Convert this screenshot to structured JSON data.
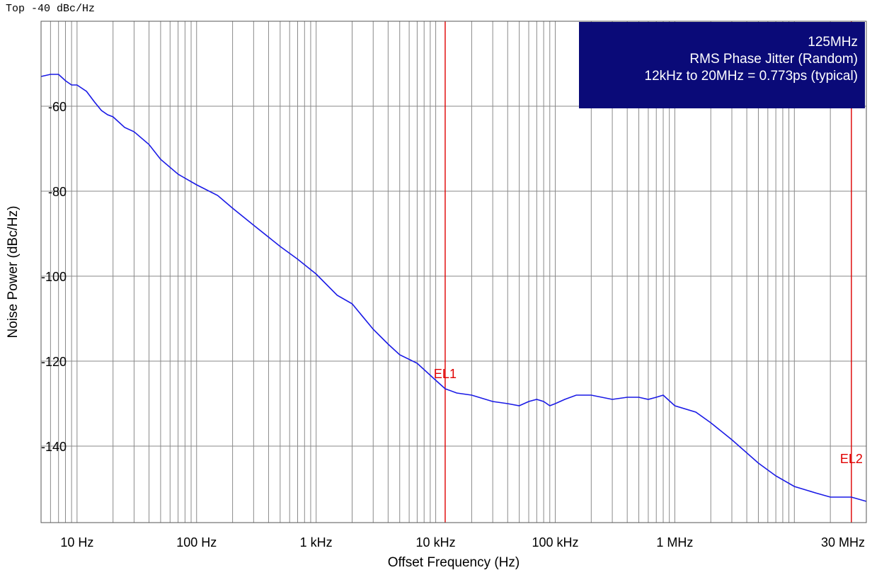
{
  "top_label": "Top -40 dBc/Hz",
  "info_box": {
    "lines": [
      "125MHz",
      "RMS Phase Jitter (Random)",
      "12kHz to 20MHz = 0.773ps (typical)"
    ],
    "background": "#0a0a78"
  },
  "colors": {
    "trace": "#1a1ae6",
    "marker": "#e00000",
    "grid": "#8a8a8a",
    "frame": "#555555"
  },
  "chart_data": {
    "type": "line",
    "title": "",
    "xlabel": "Offset Frequency (Hz)",
    "ylabel": "Noise Power (dBc/Hz)",
    "x_scale": "log",
    "xlim": [
      5,
      40000000
    ],
    "ylim": [
      -158,
      -40
    ],
    "grid": true,
    "y_ticks": [
      -60,
      -80,
      -100,
      -120,
      -140
    ],
    "x_ticks": [
      {
        "value": 10,
        "label": "10 Hz"
      },
      {
        "value": 100,
        "label": "100 Hz"
      },
      {
        "value": 1000,
        "label": "1 kHz"
      },
      {
        "value": 10000,
        "label": "10 kHz"
      },
      {
        "value": 100000,
        "label": "100 kHz"
      },
      {
        "value": 1000000,
        "label": "1 MHz"
      },
      {
        "value": 30000000,
        "label": "30 MHz"
      }
    ],
    "markers": [
      {
        "label": "EL1",
        "x": 12000,
        "label_y": -124
      },
      {
        "label": "EL2",
        "x": 30000000,
        "label_y": -144
      }
    ],
    "series": [
      {
        "x": [
          5,
          6,
          7,
          8,
          9,
          10,
          12,
          14,
          16,
          18,
          20,
          25,
          30,
          40,
          50,
          70,
          100,
          150,
          200,
          300,
          500,
          700,
          1000,
          1500,
          2000,
          3000,
          4000,
          5000,
          7000,
          10000,
          12000,
          15000,
          20000,
          30000,
          40000,
          50000,
          60000,
          70000,
          80000,
          90000,
          100000,
          120000,
          150000,
          200000,
          300000,
          400000,
          500000,
          600000,
          700000,
          800000,
          1000000,
          1500000,
          2000000,
          3000000,
          5000000,
          7000000,
          10000000,
          15000000,
          20000000,
          30000000,
          40000000
        ],
        "y": [
          -53,
          -52.5,
          -52.5,
          -54,
          -55,
          -55,
          -56.5,
          -59,
          -61,
          -62,
          -62.5,
          -65,
          -66,
          -69,
          -72.5,
          -76,
          -78.5,
          -81,
          -84,
          -88,
          -93,
          -96,
          -99.5,
          -104.5,
          -106.5,
          -112.5,
          -116,
          -118.5,
          -120.5,
          -124.5,
          -126.5,
          -127.5,
          -128,
          -129.5,
          -130,
          -130.5,
          -129.5,
          -129,
          -129.5,
          -130.5,
          -130,
          -129,
          -128,
          -128,
          -129,
          -128.5,
          -128.5,
          -129,
          -128.5,
          -128,
          -130.5,
          -132,
          -134.5,
          -138.5,
          -144,
          -147,
          -149.5,
          -151,
          -152,
          -152,
          -153
        ]
      }
    ]
  }
}
